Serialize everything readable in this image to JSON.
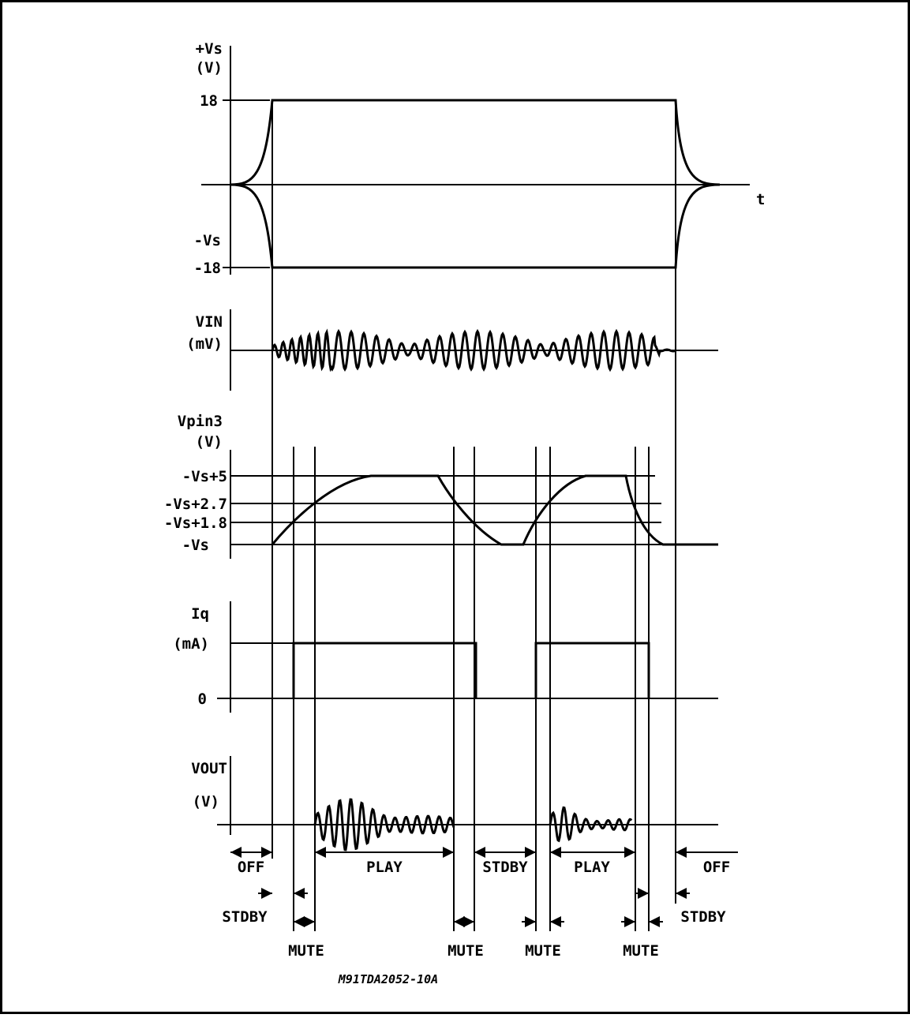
{
  "figure": {
    "reference": "M91TDA2052-10A",
    "time_axis_label": "t"
  },
  "panels": {
    "supply": {
      "label_line1": "+Vs",
      "label_line2": "(V)",
      "tick_pos": "18",
      "tick_neg_name": "-Vs",
      "tick_neg": "-18"
    },
    "vin": {
      "label_line1": "VIN",
      "label_line2": "(mV)"
    },
    "vpin3": {
      "label_line1": "Vpin3",
      "label_line2": "(V)",
      "ticks": [
        "-Vs+5",
        "-Vs+2.7",
        "-Vs+1.8",
        "-Vs"
      ]
    },
    "iq": {
      "label_line1": "Iq",
      "label_line2": "(mA)",
      "tick_zero": "0"
    },
    "vout": {
      "label_line1": "VOUT",
      "label_line2": "(V)"
    }
  },
  "states": {
    "off_left": "OFF",
    "play_1": "PLAY",
    "stdby_mid": "STDBY",
    "play_2": "PLAY",
    "off_right": "OFF",
    "stdby_left": "STDBY",
    "stdby_right": "STDBY",
    "mute_1": "MUTE",
    "mute_2": "MUTE",
    "mute_3": "MUTE",
    "mute_4": "MUTE"
  }
}
